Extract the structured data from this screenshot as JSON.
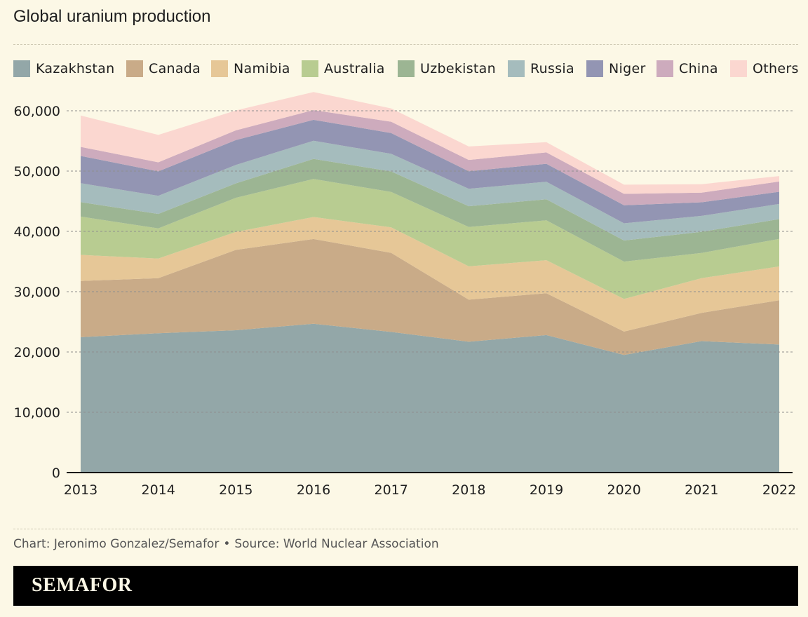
{
  "chart_data": {
    "type": "area",
    "stacked": true,
    "title": "Global uranium production",
    "x": [
      "2013",
      "2014",
      "2015",
      "2016",
      "2017",
      "2018",
      "2019",
      "2020",
      "2021",
      "2022"
    ],
    "ylim": [
      0,
      60000
    ],
    "yticks": [
      "0",
      "10,000",
      "20,000",
      "30,000",
      "40,000",
      "50,000",
      "60,000"
    ],
    "ytick_values": [
      0,
      10000,
      20000,
      30000,
      40000,
      50000,
      60000
    ],
    "grid": "horizontal dashed",
    "legend_position": "top",
    "series": [
      {
        "name": "Kazakhstan",
        "color": "#93a7a8",
        "values": [
          22450,
          23120,
          23600,
          24690,
          23320,
          21700,
          22800,
          19500,
          21800,
          21230
        ]
      },
      {
        "name": "Canada",
        "color": "#c9ab88",
        "values": [
          9330,
          9130,
          13330,
          14040,
          13120,
          6980,
          6940,
          3880,
          4690,
          7350
        ]
      },
      {
        "name": "Namibia",
        "color": "#e6c797",
        "values": [
          4320,
          3250,
          2990,
          3650,
          4220,
          5520,
          5480,
          5410,
          5750,
          5610
        ]
      },
      {
        "name": "Australia",
        "color": "#b8cc91",
        "values": [
          6350,
          5000,
          5650,
          6320,
          5880,
          6520,
          6610,
          6200,
          4190,
          4550
        ]
      },
      {
        "name": "Uzbekistan",
        "color": "#9cb593",
        "values": [
          2400,
          2400,
          2390,
          3320,
          3400,
          3450,
          3500,
          3500,
          3500,
          3300
        ]
      },
      {
        "name": "Russia",
        "color": "#a5bcbd",
        "values": [
          3140,
          2990,
          3060,
          3000,
          2920,
          2900,
          2900,
          2850,
          2640,
          2510
        ]
      },
      {
        "name": "Niger",
        "color": "#9395b3",
        "values": [
          4520,
          4060,
          4120,
          3480,
          3450,
          2900,
          2980,
          2990,
          2250,
          2020
        ]
      },
      {
        "name": "China",
        "color": "#cdabbd",
        "values": [
          1500,
          1500,
          1620,
          1620,
          1880,
          1880,
          1880,
          1890,
          1600,
          1700
        ]
      },
      {
        "name": "Others",
        "color": "#fbd7d0",
        "values": [
          5200,
          4550,
          3300,
          3000,
          2200,
          2230,
          1700,
          1520,
          1400,
          900
        ]
      }
    ]
  },
  "footer": {
    "credit": "Chart: Jeronimo Gonzalez/Semafor",
    "separator": "•",
    "source": "Source: World Nuclear Association",
    "brand": "SEMAFOR"
  }
}
